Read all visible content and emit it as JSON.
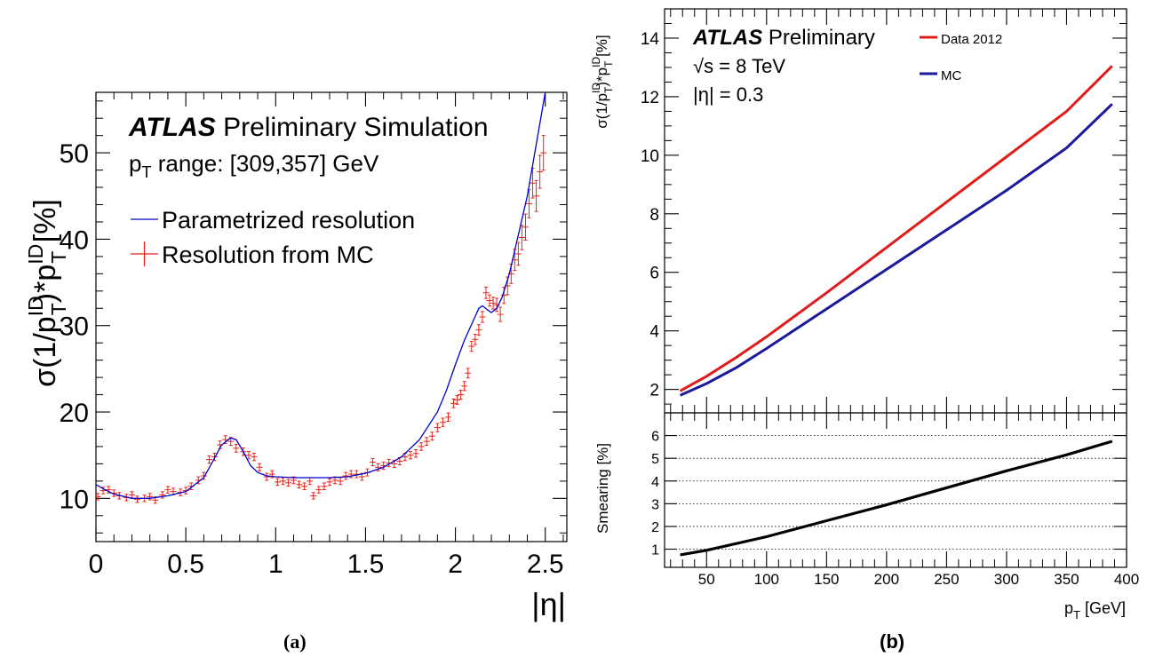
{
  "chart_data": [
    {
      "type": "scatter",
      "panel": "a",
      "caption": "(a)",
      "atlas": "ATLAS",
      "label": "Preliminary Simulation",
      "range_text": "range: [309,357] GeV",
      "xlabel": "|η|",
      "xlim": [
        0,
        2.62
      ],
      "ylim": [
        5,
        57
      ],
      "xticks": [
        0,
        0.5,
        1,
        1.5,
        2,
        2.5
      ],
      "xtick_labels": [
        "0",
        "0.5",
        "1",
        "1.5",
        "2",
        "2.5"
      ],
      "yticks": [
        10,
        20,
        30,
        40,
        50
      ],
      "ytick_labels": [
        "10",
        "20",
        "30",
        "40",
        "50"
      ],
      "legend": [
        "Parametrized resolution",
        "Resolution from MC"
      ],
      "colors": {
        "line": "#0000cc",
        "points": "#e8231a"
      },
      "series": [
        {
          "name": "Parametrized resolution",
          "x": [
            0,
            0.05,
            0.1,
            0.2,
            0.3,
            0.4,
            0.5,
            0.6,
            0.65,
            0.7,
            0.75,
            0.78,
            0.82,
            0.86,
            0.9,
            0.95,
            1.0,
            1.1,
            1.2,
            1.3,
            1.4,
            1.5,
            1.6,
            1.7,
            1.8,
            1.9,
            1.95,
            2.0,
            2.05,
            2.1,
            2.13,
            2.15,
            2.18,
            2.2,
            2.23,
            2.26,
            2.3,
            2.35,
            2.4,
            2.45,
            2.5
          ],
          "y": [
            11.6,
            11.0,
            10.5,
            10.0,
            10.0,
            10.3,
            10.8,
            12.4,
            14.3,
            16.2,
            17.0,
            16.8,
            15.4,
            13.8,
            13.0,
            12.6,
            12.5,
            12.4,
            12.4,
            12.4,
            12.5,
            12.9,
            13.6,
            14.8,
            16.8,
            20.0,
            22.5,
            25.5,
            28.3,
            30.6,
            32.0,
            32.3,
            31.8,
            31.5,
            32.0,
            33.3,
            36.0,
            40.5,
            45.0,
            51.0,
            57.0
          ]
        },
        {
          "name": "Resolution from MC",
          "x": [
            0.01,
            0.04,
            0.07,
            0.1,
            0.13,
            0.17,
            0.2,
            0.23,
            0.27,
            0.3,
            0.33,
            0.37,
            0.4,
            0.43,
            0.47,
            0.5,
            0.53,
            0.57,
            0.6,
            0.63,
            0.66,
            0.69,
            0.72,
            0.75,
            0.78,
            0.82,
            0.85,
            0.88,
            0.91,
            0.95,
            0.98,
            1.01,
            1.04,
            1.07,
            1.1,
            1.13,
            1.16,
            1.19,
            1.21,
            1.24,
            1.27,
            1.3,
            1.33,
            1.36,
            1.39,
            1.42,
            1.45,
            1.48,
            1.51,
            1.54,
            1.57,
            1.6,
            1.63,
            1.66,
            1.69,
            1.72,
            1.75,
            1.78,
            1.81,
            1.84,
            1.87,
            1.9,
            1.93,
            1.96,
            1.99,
            2.01,
            2.03,
            2.05,
            2.07,
            2.09,
            2.11,
            2.13,
            2.15,
            2.17,
            2.19,
            2.21,
            2.23,
            2.25,
            2.27,
            2.29,
            2.31,
            2.33,
            2.35,
            2.37,
            2.39,
            2.41,
            2.43,
            2.45,
            2.47,
            2.49
          ],
          "y": [
            10.2,
            10.9,
            11.0,
            10.6,
            10.3,
            10.1,
            10.4,
            9.9,
            10.0,
            10.2,
            9.8,
            10.4,
            11.0,
            10.8,
            10.7,
            10.9,
            11.4,
            12.1,
            12.6,
            14.5,
            14.8,
            16.2,
            16.8,
            16.6,
            15.8,
            15.4,
            15.0,
            14.8,
            13.6,
            12.5,
            12.8,
            11.9,
            12.0,
            11.8,
            12.1,
            11.6,
            11.4,
            12.0,
            10.3,
            11.0,
            11.4,
            11.9,
            12.1,
            12.0,
            12.6,
            12.8,
            12.8,
            12.5,
            13.0,
            14.2,
            13.6,
            13.8,
            14.1,
            14.0,
            14.3,
            14.8,
            15.0,
            15.2,
            16.0,
            16.6,
            17.2,
            18.2,
            18.8,
            19.4,
            21.0,
            21.4,
            22.0,
            23.0,
            24.5,
            27.6,
            28.4,
            29.5,
            31.0,
            33.8,
            32.9,
            32.6,
            32.4,
            31.3,
            33.5,
            34.6,
            36.0,
            37.6,
            38.3,
            40.2,
            41.4,
            44.1,
            46.5,
            45.0,
            47.8,
            50.0
          ]
        }
      ]
    },
    {
      "type": "line",
      "panel": "b",
      "caption": "(b)",
      "atlas": "ATLAS",
      "label": "Preliminary",
      "energy_text": "√s = 8 TeV",
      "eta_text": "|η| = 0.3",
      "ylabel": "σ(1/p_T^ID)*p_T^ID [%]",
      "xlabel": "p_T [GeV]",
      "xlim": [
        15,
        400
      ],
      "ylim": [
        1.2,
        15
      ],
      "xticks": [
        50,
        100,
        150,
        200,
        250,
        300,
        350,
        400
      ],
      "xtick_labels": [
        "50",
        "100",
        "150",
        "200",
        "250",
        "300",
        "350",
        "400"
      ],
      "yticks": [
        2,
        4,
        6,
        8,
        10,
        12,
        14
      ],
      "ytick_labels": [
        "2",
        "4",
        "6",
        "8",
        "10",
        "12",
        "14"
      ],
      "colors": {
        "data": "#e01b1b",
        "mc": "#1a1a9a",
        "smearing": "#000000"
      },
      "series": [
        {
          "name": "Data 2012",
          "x": [
            28,
            50,
            75,
            100,
            150,
            200,
            250,
            300,
            350,
            388
          ],
          "y": [
            1.95,
            2.45,
            3.1,
            3.8,
            5.3,
            6.85,
            8.4,
            9.95,
            11.5,
            13.05
          ]
        },
        {
          "name": "MC",
          "x": [
            28,
            50,
            75,
            100,
            150,
            200,
            250,
            300,
            350,
            388
          ],
          "y": [
            1.8,
            2.2,
            2.75,
            3.4,
            4.75,
            6.1,
            7.45,
            8.8,
            10.25,
            11.75
          ]
        }
      ],
      "smearing": {
        "ylabel": "Smearing [%]",
        "ylim": [
          0.2,
          7.0
        ],
        "yticks": [
          1,
          2,
          3,
          4,
          5,
          6
        ],
        "ytick_labels": [
          "1",
          "2",
          "3",
          "4",
          "5",
          "6"
        ],
        "gridlines": [
          1,
          2,
          3,
          4,
          5,
          6
        ],
        "x": [
          28,
          50,
          100,
          150,
          200,
          250,
          300,
          350,
          388
        ],
        "y": [
          0.75,
          0.95,
          1.55,
          2.25,
          2.95,
          3.7,
          4.45,
          5.15,
          5.75
        ]
      }
    }
  ]
}
